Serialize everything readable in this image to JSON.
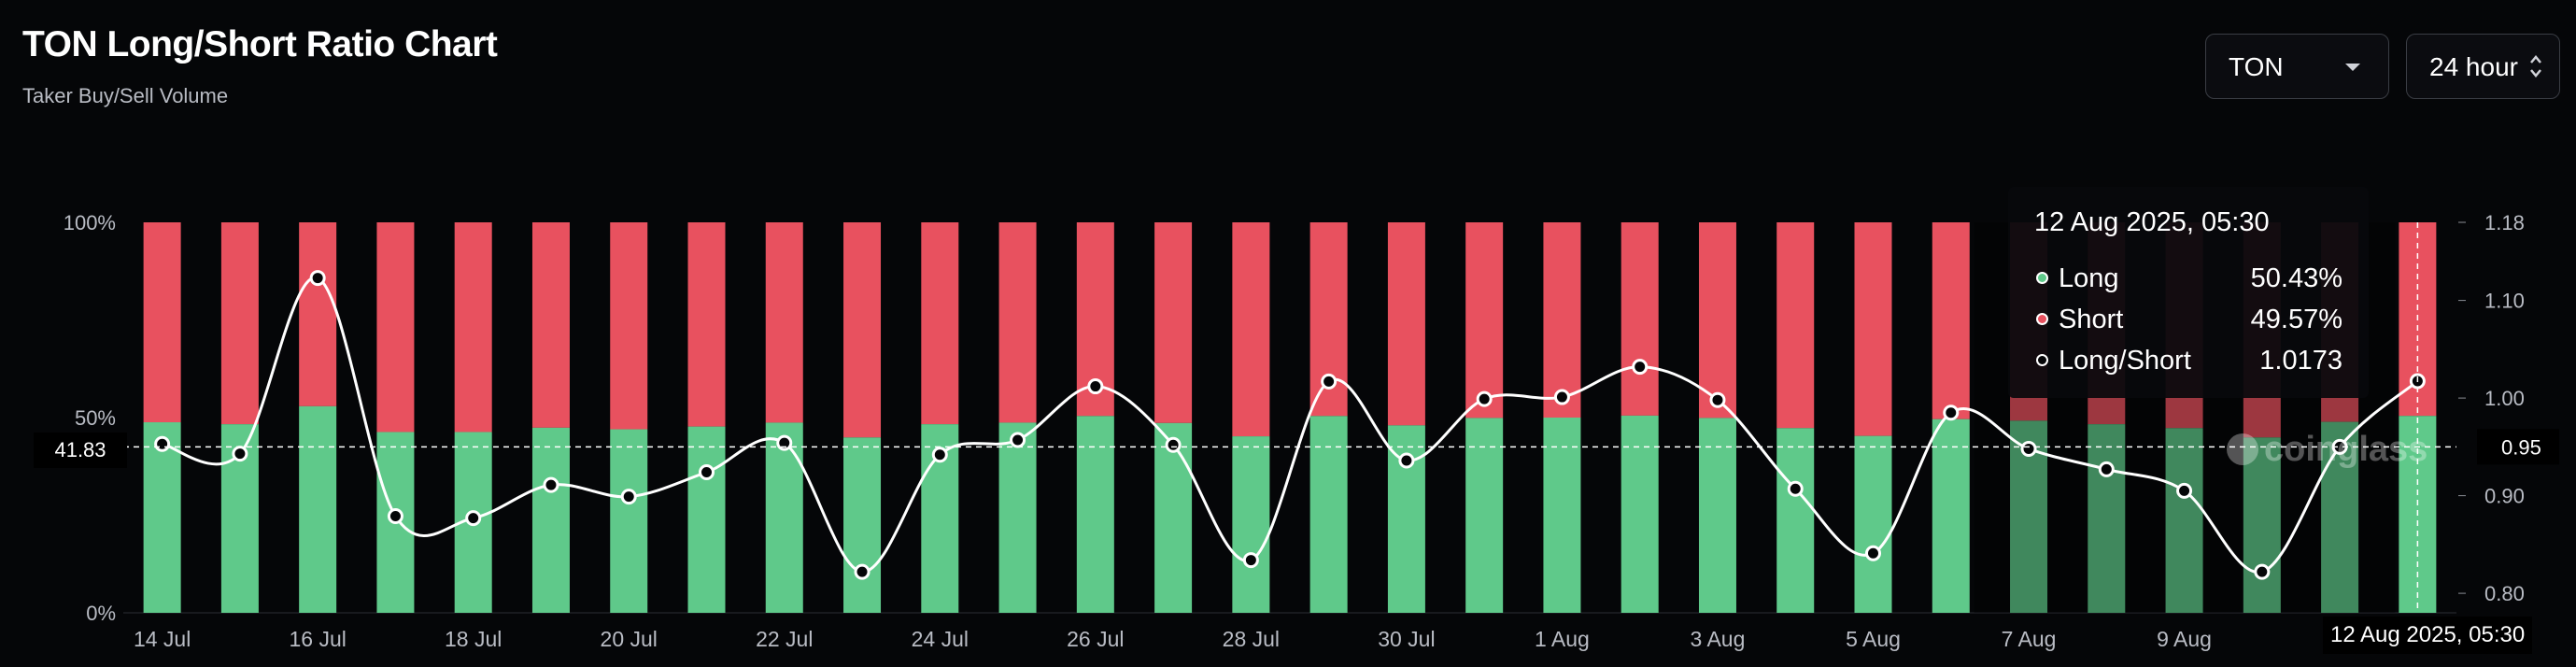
{
  "header": {
    "title": "TON Long/Short Ratio Chart",
    "subtitle": "Taker Buy/Sell Volume"
  },
  "controls": {
    "symbol": "TON",
    "period": "24 hour"
  },
  "tooltip": {
    "date": "12 Aug 2025, 05:30",
    "rows": [
      {
        "name": "Long",
        "value": "50.43%",
        "color": "#5fc98a"
      },
      {
        "name": "Short",
        "value": "49.57%",
        "color": "#e8515f"
      },
      {
        "name": "Long/Short",
        "value": "1.0173",
        "color": "#050608"
      }
    ]
  },
  "crosshair": {
    "x_label": "12 Aug 2025, 05:30",
    "left_value": "41.83",
    "right_value": "0.95"
  },
  "watermark": "coinglass",
  "colors": {
    "long": "#5fc98a",
    "short": "#e8515f",
    "ratio_line": "#ffffff",
    "background": "#050608"
  },
  "chart_data": {
    "type": "bar",
    "stacked": true,
    "categories": [
      "14 Jul",
      "15 Jul",
      "16 Jul",
      "17 Jul",
      "18 Jul",
      "19 Jul",
      "20 Jul",
      "21 Jul",
      "22 Jul",
      "23 Jul",
      "24 Jul",
      "25 Jul",
      "26 Jul",
      "27 Jul",
      "28 Jul",
      "29 Jul",
      "30 Jul",
      "31 Jul",
      "1 Aug",
      "2 Aug",
      "3 Aug",
      "4 Aug",
      "5 Aug",
      "6 Aug",
      "7 Aug",
      "8 Aug",
      "9 Aug",
      "10 Aug",
      "11 Aug",
      "12 Aug"
    ],
    "x_tick_labels": [
      "14 Jul",
      "16 Jul",
      "18 Jul",
      "20 Jul",
      "22 Jul",
      "24 Jul",
      "26 Jul",
      "28 Jul",
      "30 Jul",
      "1 Aug",
      "3 Aug",
      "5 Aug",
      "7 Aug",
      "9 Aug"
    ],
    "series": [
      {
        "name": "Long",
        "values": [
          48.8,
          48.3,
          52.9,
          46.3,
          46.3,
          47.4,
          47.0,
          47.7,
          48.7,
          44.9,
          48.3,
          48.7,
          50.4,
          48.6,
          45.2,
          50.4,
          48.0,
          49.9,
          50.0,
          50.5,
          49.9,
          47.3,
          45.3,
          49.6,
          49.2,
          48.3,
          47.3,
          44.9,
          48.9,
          50.43
        ],
        "color": "#5fc98a"
      },
      {
        "name": "Short",
        "values": [
          51.2,
          51.7,
          47.1,
          53.7,
          53.7,
          52.6,
          53.0,
          52.3,
          51.3,
          55.1,
          51.7,
          51.3,
          49.6,
          51.4,
          54.8,
          49.6,
          52.0,
          50.1,
          50.0,
          49.5,
          50.1,
          52.7,
          54.7,
          50.4,
          50.8,
          51.7,
          52.7,
          55.1,
          51.1,
          49.57
        ],
        "color": "#e8515f"
      },
      {
        "name": "Long/Short",
        "type": "line",
        "axis": "right",
        "values": [
          0.953,
          0.943,
          1.123,
          0.879,
          0.877,
          0.911,
          0.899,
          0.924,
          0.954,
          0.822,
          0.942,
          0.957,
          1.012,
          0.952,
          0.834,
          1.017,
          0.936,
          0.999,
          1.001,
          1.032,
          0.998,
          0.907,
          0.841,
          0.985,
          0.948,
          0.927,
          0.905,
          0.822,
          0.95,
          1.0173
        ],
        "color": "#ffffff"
      }
    ],
    "y_left": {
      "ticks": [
        "0%",
        "50%",
        "100%"
      ],
      "range": [
        0,
        100
      ]
    },
    "y_right": {
      "ticks": [
        "0.80",
        "0.90",
        "1.00",
        "1.10",
        "1.18"
      ],
      "range": [
        0.78,
        1.18
      ]
    }
  }
}
